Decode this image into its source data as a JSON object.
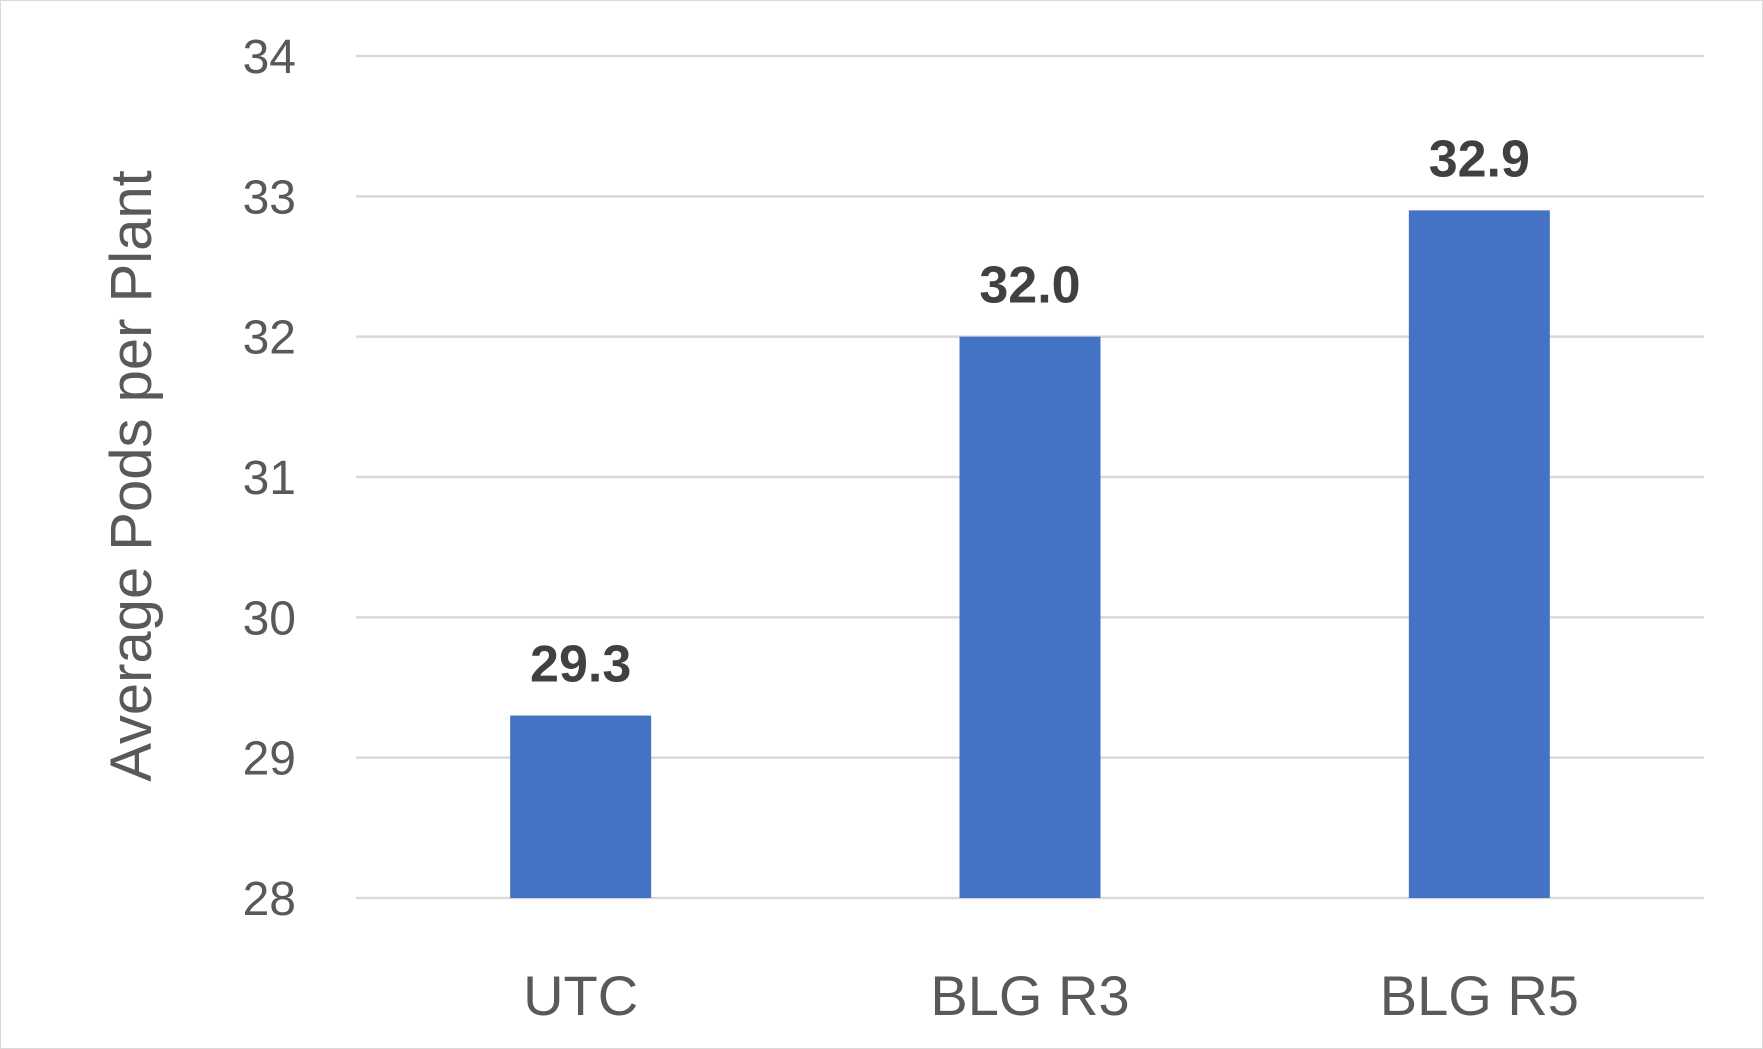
{
  "chart_data": {
    "type": "bar",
    "title": "",
    "xlabel": "",
    "ylabel": "Average Pods per Plant",
    "categories": [
      "UTC",
      "BLG R3",
      "BLG R5"
    ],
    "values": [
      29.3,
      32.0,
      32.9
    ],
    "data_labels": [
      "29.3",
      "32.0",
      "32.9"
    ],
    "ylim": [
      28,
      34
    ],
    "yticks": [
      28,
      29,
      30,
      31,
      32,
      33,
      34
    ],
    "grid": true,
    "legend": "none",
    "bar_color": "#4472C4"
  }
}
